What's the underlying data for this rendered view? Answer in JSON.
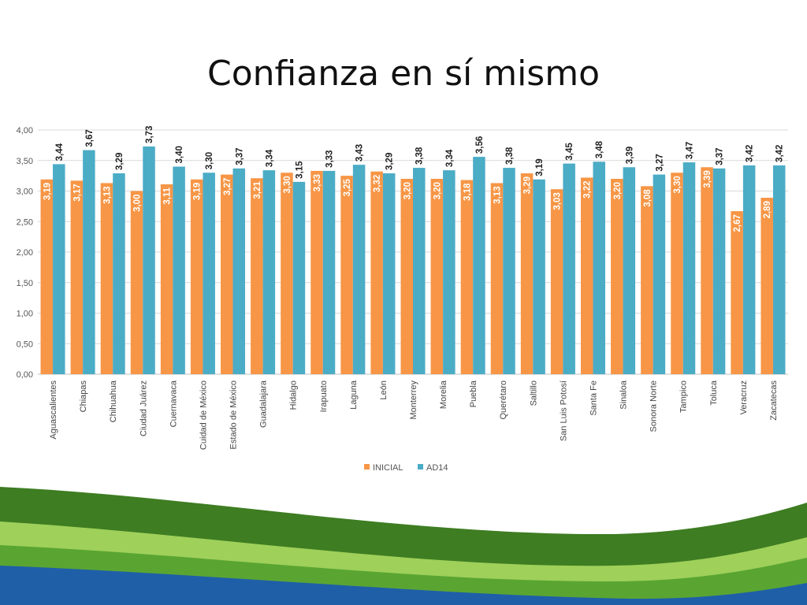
{
  "title": "Confianza en sí mismo",
  "chart_data": {
    "type": "bar",
    "title": "Confianza en sí mismo",
    "categories": [
      "Aguascalientes",
      "Chiapas",
      "Chihuahua",
      "Ciudad Juárez",
      "Cuernavaca",
      "Cuidad de México",
      "Estado de México",
      "Guadalajara",
      "Hidalgo",
      "Irapuato",
      "Laguna",
      "León",
      "Monterrey",
      "Morelia",
      "Puebla",
      "Querétaro",
      "Saltillo",
      "San Luis Potosí",
      "Santa Fe",
      "Sinaloa",
      "Sonora Norte",
      "Tampico",
      "Toluca",
      "Veracruz",
      "Zacatecas"
    ],
    "series": [
      {
        "name": "INICIAL",
        "color": "#F79646",
        "values": [
          3.19,
          3.17,
          3.13,
          3.0,
          3.11,
          3.19,
          3.27,
          3.21,
          3.3,
          3.33,
          3.25,
          3.32,
          3.2,
          3.2,
          3.18,
          3.13,
          3.29,
          3.03,
          3.22,
          3.2,
          3.08,
          3.3,
          3.39,
          2.67,
          2.89
        ],
        "labels": [
          "3,19",
          "3,17",
          "3,13",
          "3,00",
          "3,11",
          "3,19",
          "3,27",
          "3,21",
          "3,30",
          "3,33",
          "3,25",
          "3,32",
          "3,20",
          "3,20",
          "3,18",
          "3,13",
          "3,29",
          "3,03",
          "3,22",
          "3,20",
          "3,08",
          "3,30",
          "3,39",
          "2,67",
          "2,89"
        ]
      },
      {
        "name": "AD14",
        "color": "#4BACC6",
        "values": [
          3.44,
          3.67,
          3.29,
          3.73,
          3.4,
          3.3,
          3.37,
          3.34,
          3.15,
          3.33,
          3.43,
          3.29,
          3.38,
          3.34,
          3.56,
          3.38,
          3.19,
          3.45,
          3.48,
          3.39,
          3.27,
          3.47,
          3.37,
          3.42,
          3.42
        ],
        "labels": [
          "3,44",
          "3,67",
          "3,29",
          "3,73",
          "3,40",
          "3,30",
          "3,37",
          "3,34",
          "3,15",
          "3,33",
          "3,43",
          "3,29",
          "3,38",
          "3,34",
          "3,56",
          "3,38",
          "3,19",
          "3,45",
          "3,48",
          "3,39",
          "3,27",
          "3,47",
          "3,37",
          "3,42",
          "3,42"
        ]
      }
    ],
    "yticks": [
      "0,00",
      "0,50",
      "1,00",
      "1,50",
      "2,00",
      "2,50",
      "3,00",
      "3,50",
      "4,00"
    ],
    "ylim": [
      0,
      4
    ],
    "xlabel": "",
    "ylabel": "",
    "grid": true,
    "legend_position": "bottom"
  },
  "colors": {
    "inicial": "#F79646",
    "ad14": "#4BACC6",
    "grid": "#D9D9D9",
    "wave_dark": "#3E7D22",
    "wave_light": "#9ED05A",
    "wave_blue": "#1F5FA8"
  }
}
